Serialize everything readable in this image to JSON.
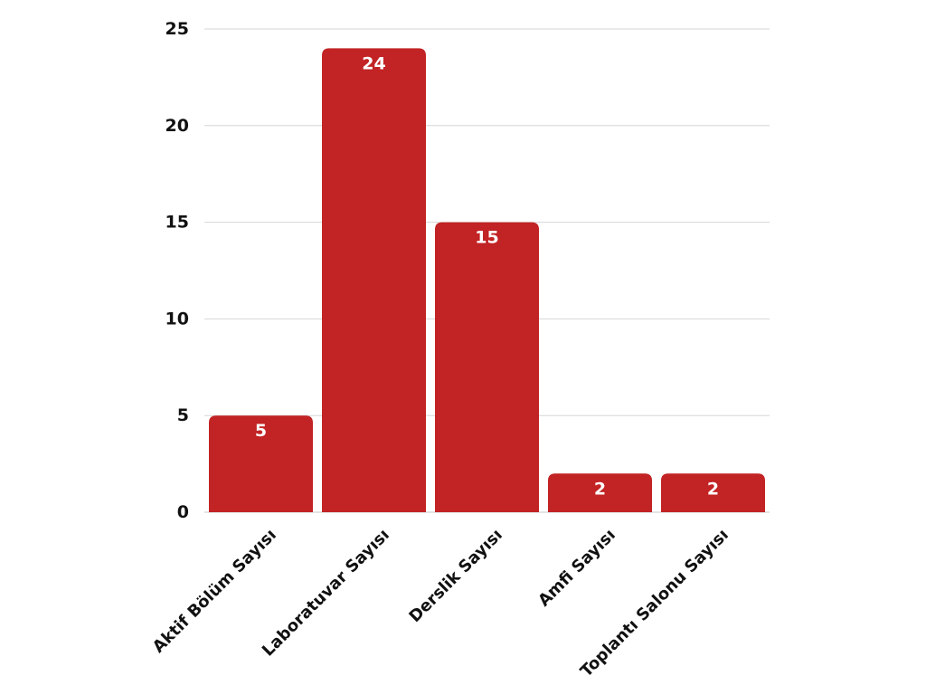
{
  "chart_data": {
    "type": "bar",
    "categories": [
      "Aktif Bölüm Sayısı",
      "Laboratuvar Sayısı",
      "Derslik Sayısı",
      "Amfi Sayısı",
      "Toplantı Salonu Sayısı"
    ],
    "values": [
      5,
      24,
      15,
      2,
      2
    ],
    "ylim": [
      0,
      25
    ],
    "yticks": [
      0,
      5,
      10,
      15,
      20,
      25
    ],
    "grid": true,
    "data_labels": true,
    "bar_color": "#c22324",
    "legend": "none"
  }
}
